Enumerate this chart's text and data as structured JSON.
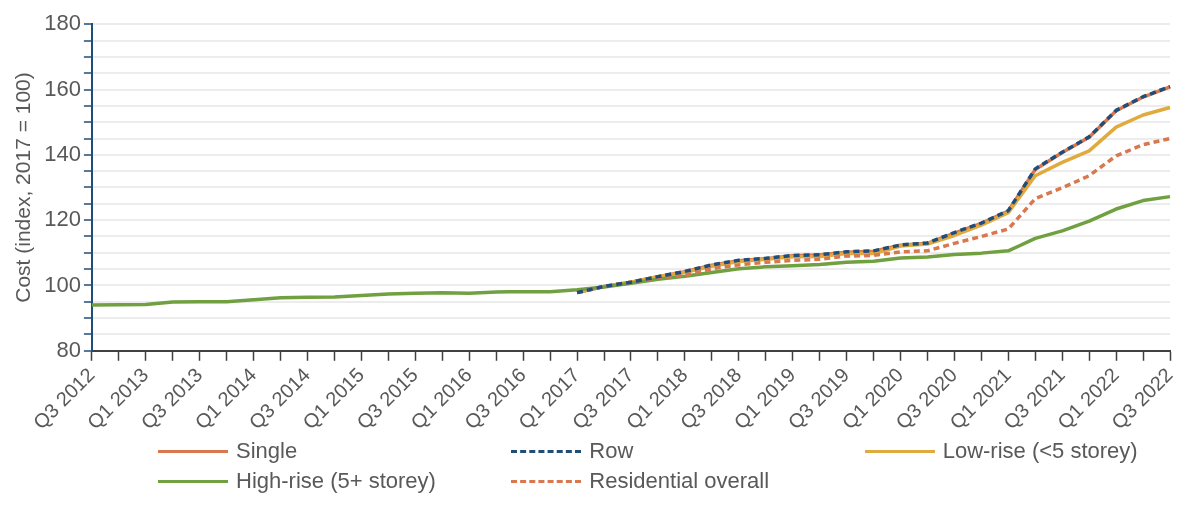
{
  "chart_data": {
    "type": "line",
    "ylabel": "Cost (index, 2017 = 100)",
    "categories": [
      "Q3 2012",
      null,
      "Q1 2013",
      null,
      "Q3 2013",
      null,
      "Q1 2014",
      null,
      "Q3 2014",
      null,
      "Q1 2015",
      null,
      "Q3 2015",
      null,
      "Q1 2016",
      null,
      "Q3 2016",
      null,
      "Q1 2017",
      null,
      "Q3 2017",
      null,
      "Q1 2018",
      null,
      "Q3 2018",
      null,
      "Q1 2019",
      null,
      "Q3 2019",
      null,
      "Q1 2020",
      null,
      "Q3 2020",
      null,
      "Q1 2021",
      null,
      "Q3 2021",
      null,
      "Q1 2022",
      null,
      "Q3 2022"
    ],
    "series": [
      {
        "name": "Single",
        "color": "#d9774f",
        "line_style": "solid",
        "values": [
          null,
          null,
          null,
          null,
          null,
          null,
          null,
          null,
          null,
          null,
          null,
          null,
          null,
          null,
          null,
          null,
          null,
          null,
          97.8,
          99.7,
          101.0,
          102.7,
          104.2,
          106.2,
          107.6,
          108.2,
          109.1,
          109.3,
          110.2,
          110.5,
          112.3,
          112.9,
          116.0,
          119.0,
          122.8,
          135.5,
          140.7,
          145.4,
          153.5,
          157.7,
          160.8
        ]
      },
      {
        "name": "Row",
        "color": "#1f4e79",
        "line_style": "dashed",
        "values": [
          null,
          null,
          null,
          null,
          null,
          null,
          null,
          null,
          null,
          null,
          null,
          null,
          null,
          null,
          null,
          null,
          null,
          null,
          97.8,
          99.7,
          101.0,
          102.7,
          104.3,
          106.3,
          107.7,
          108.3,
          109.2,
          109.4,
          110.3,
          110.6,
          112.4,
          113.0,
          116.2,
          119.1,
          122.9,
          135.7,
          140.8,
          145.5,
          153.6,
          157.8,
          160.9
        ]
      },
      {
        "name": "Low-rise (<5 storey)",
        "color": "#e0aa3e",
        "line_style": "solid",
        "values": [
          null,
          null,
          null,
          null,
          null,
          null,
          null,
          null,
          null,
          null,
          null,
          null,
          null,
          null,
          null,
          null,
          null,
          null,
          97.8,
          99.7,
          101.0,
          102.7,
          104.0,
          105.9,
          107.3,
          108.0,
          108.8,
          108.9,
          109.8,
          109.8,
          112.1,
          112.7,
          115.3,
          118.5,
          122.3,
          133.6,
          137.7,
          141.2,
          148.5,
          152.2,
          154.5
        ]
      },
      {
        "name": "High-rise (5+ storey)",
        "color": "#70a040",
        "line_style": "solid",
        "values": [
          94.0,
          94.1,
          94.2,
          94.9,
          95.0,
          95.0,
          95.6,
          96.2,
          96.4,
          96.5,
          96.9,
          97.4,
          97.6,
          97.8,
          97.6,
          98.0,
          98.1,
          98.1,
          98.7,
          99.5,
          100.7,
          101.9,
          102.8,
          104.0,
          105.1,
          105.7,
          106.0,
          106.4,
          107.1,
          107.4,
          108.4,
          108.7,
          109.5,
          109.9,
          110.6,
          114.4,
          116.7,
          119.7,
          123.4,
          126.0,
          127.2
        ]
      },
      {
        "name": "Residential overall",
        "color": "#d9774f",
        "line_style": "dashed",
        "values": [
          null,
          null,
          null,
          null,
          null,
          null,
          null,
          null,
          null,
          null,
          null,
          null,
          null,
          null,
          null,
          null,
          null,
          null,
          97.8,
          99.7,
          101.0,
          102.4,
          103.1,
          105.1,
          106.3,
          107.1,
          107.7,
          108.0,
          109.0,
          109.2,
          110.3,
          110.6,
          112.9,
          115.0,
          117.3,
          126.6,
          129.9,
          133.6,
          139.7,
          143.1,
          145.0
        ]
      }
    ],
    "ylim": [
      80,
      180
    ],
    "yticks": [
      80,
      {
        "value": 85,
        "label": null
      },
      {
        "value": 90,
        "label": null
      },
      {
        "value": 95,
        "label": null
      },
      100,
      {
        "value": 105,
        "label": null
      },
      {
        "value": 110,
        "label": null
      },
      {
        "value": 115,
        "label": null
      },
      120,
      {
        "value": 125,
        "label": null
      },
      {
        "value": 130,
        "label": null
      },
      {
        "value": 135,
        "label": null
      },
      140,
      {
        "value": 145,
        "label": null
      },
      {
        "value": 150,
        "label": null
      },
      {
        "value": 155,
        "label": null
      },
      160,
      {
        "value": 165,
        "label": null
      },
      {
        "value": 170,
        "label": null
      },
      {
        "value": 175,
        "label": null
      },
      180
    ],
    "grid": "y",
    "legend": "bottom",
    "marker": "none"
  }
}
